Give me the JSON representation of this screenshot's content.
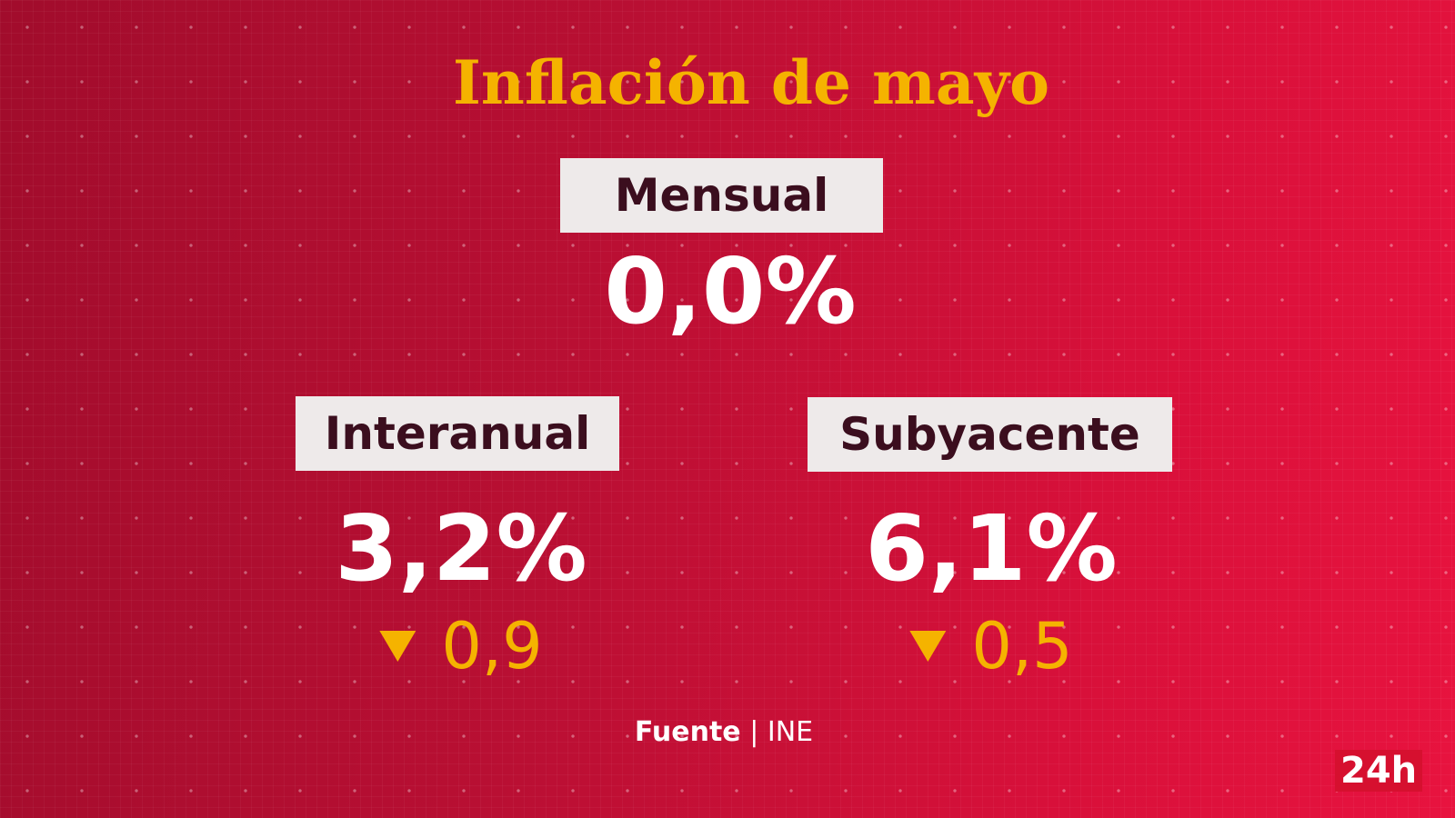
{
  "title": "Inflación de mayo",
  "indicators": [
    {
      "label": "Mensual",
      "value": "0,0%"
    },
    {
      "label": "Interanual",
      "value": "3,2%",
      "change": "0,9"
    },
    {
      "label": "Subyacente",
      "value": "6,1%",
      "change": "0,5"
    }
  ],
  "source": {
    "label": "Fuente",
    "separator": "|",
    "name": "INE"
  },
  "logo": "24h"
}
